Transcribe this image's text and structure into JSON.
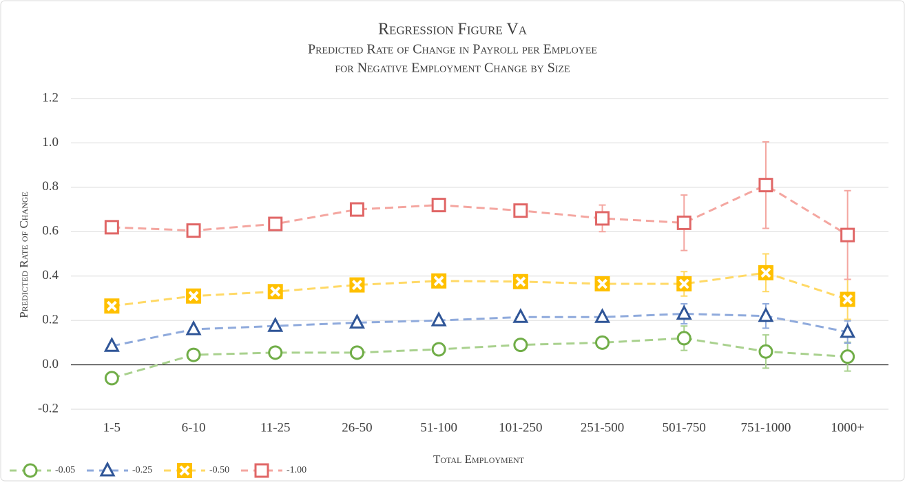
{
  "chart_data": {
    "type": "line",
    "title": "Regression Figure Va",
    "subtitle": [
      "Predicted Rate of Change in Payroll per Employee",
      "for Negative Employment Change by Size"
    ],
    "x_label": "Total Employment",
    "y_label": "Predicted Rate of Change",
    "categories": [
      "1-5",
      "6-10",
      "11-25",
      "26-50",
      "51-100",
      "101-250",
      "251-500",
      "501-750",
      "751-1000",
      "1000+"
    ],
    "ylim": [
      -0.2,
      1.2
    ],
    "yticks": [
      -0.2,
      {
        "value": 0,
        "label": "0.0"
      },
      0.2,
      0.4,
      0.6,
      0.8,
      {
        "value": 1,
        "label": "1.0"
      },
      1.2
    ],
    "grid": true,
    "legend": "bottom-left",
    "series": [
      {
        "name": "-0.05",
        "color": "#70ad47",
        "line_color": "#a9d18e",
        "marker": "circle",
        "values": [
          -0.06,
          0.045,
          0.055,
          0.055,
          0.07,
          0.09,
          0.1,
          0.12,
          0.06,
          0.037
        ],
        "errors": [
          null,
          null,
          null,
          null,
          null,
          null,
          null,
          0.055,
          0.075,
          0.065
        ]
      },
      {
        "name": "-0.25",
        "color": "#2f5597",
        "line_color": "#8faadc",
        "marker": "triangle",
        "values": [
          0.085,
          0.16,
          0.175,
          0.19,
          0.2,
          0.215,
          0.215,
          0.23,
          0.22,
          0.148
        ],
        "errors": [
          null,
          null,
          null,
          null,
          null,
          null,
          null,
          0.045,
          0.055,
          0.05
        ]
      },
      {
        "name": "-0.50",
        "color": "#ffc000",
        "line_color": "#ffd966",
        "marker": "x-square",
        "values": [
          0.265,
          0.31,
          0.33,
          0.36,
          0.378,
          0.375,
          0.365,
          0.365,
          0.415,
          0.295
        ],
        "errors": [
          null,
          null,
          null,
          null,
          null,
          null,
          null,
          0.055,
          0.085,
          0.09
        ]
      },
      {
        "name": "-1.00",
        "color": "#e06666",
        "line_color": "#f4a6a0",
        "marker": "square",
        "values": [
          0.62,
          0.605,
          0.635,
          0.7,
          0.72,
          0.695,
          0.66,
          0.64,
          0.81,
          0.585
        ],
        "errors": [
          null,
          null,
          null,
          null,
          null,
          null,
          0.06,
          0.125,
          0.195,
          0.2
        ]
      }
    ]
  }
}
